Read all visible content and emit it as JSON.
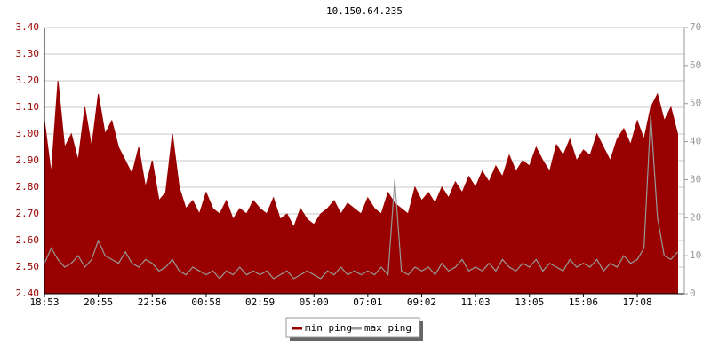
{
  "chart_data": {
    "type": "area_line",
    "title": "10.150.64.235",
    "categories": [
      "18:53",
      null,
      null,
      null,
      null,
      null,
      null,
      null,
      "20:55",
      null,
      null,
      null,
      null,
      null,
      null,
      null,
      "22:56",
      null,
      null,
      null,
      null,
      null,
      null,
      null,
      "00:58",
      null,
      null,
      null,
      null,
      null,
      null,
      null,
      "02:59",
      null,
      null,
      null,
      null,
      null,
      null,
      null,
      "05:00",
      null,
      null,
      null,
      null,
      null,
      null,
      null,
      "07:01",
      null,
      null,
      null,
      null,
      null,
      null,
      null,
      "09:02",
      null,
      null,
      null,
      null,
      null,
      null,
      null,
      "11:03",
      null,
      null,
      null,
      null,
      null,
      null,
      null,
      "13:05",
      null,
      null,
      null,
      null,
      null,
      null,
      null,
      "15:06",
      null,
      null,
      null,
      null,
      null,
      null,
      null,
      "17:08",
      null,
      null,
      null,
      null,
      null,
      null
    ],
    "series": [
      {
        "name": "min ping",
        "color": "#990000",
        "values": [
          3.05,
          2.85,
          3.2,
          2.95,
          3.0,
          2.9,
          3.1,
          2.95,
          3.15,
          3.0,
          3.05,
          2.95,
          2.9,
          2.85,
          2.95,
          2.8,
          2.9,
          2.75,
          2.78,
          3.0,
          2.8,
          2.72,
          2.75,
          2.7,
          2.78,
          2.72,
          2.7,
          2.75,
          2.68,
          2.72,
          2.7,
          2.75,
          2.72,
          2.7,
          2.76,
          2.68,
          2.7,
          2.65,
          2.72,
          2.68,
          2.66,
          2.7,
          2.72,
          2.75,
          2.7,
          2.74,
          2.72,
          2.7,
          2.76,
          2.72,
          2.7,
          2.78,
          2.74,
          2.72,
          2.7,
          2.8,
          2.75,
          2.78,
          2.74,
          2.8,
          2.76,
          2.82,
          2.78,
          2.84,
          2.8,
          2.86,
          2.82,
          2.88,
          2.84,
          2.92,
          2.86,
          2.9,
          2.88,
          2.95,
          2.9,
          2.86,
          2.96,
          2.92,
          2.98,
          2.9,
          2.94,
          2.92,
          3.0,
          2.95,
          2.9,
          2.98,
          3.02,
          2.96,
          3.05,
          2.98,
          3.1,
          3.15,
          3.05,
          3.1,
          3.0
        ]
      },
      {
        "name": "max ping",
        "color": "#999999",
        "axis": "y2",
        "values": [
          8,
          12,
          9,
          7,
          8,
          10,
          7,
          9,
          14,
          10,
          9,
          8,
          11,
          8,
          7,
          9,
          8,
          6,
          7,
          9,
          6,
          5,
          7,
          6,
          5,
          6,
          4,
          6,
          5,
          7,
          5,
          6,
          5,
          6,
          4,
          5,
          6,
          4,
          5,
          6,
          5,
          4,
          6,
          5,
          7,
          5,
          6,
          5,
          6,
          5,
          7,
          5,
          30,
          6,
          5,
          7,
          6,
          7,
          5,
          8,
          6,
          7,
          9,
          6,
          7,
          6,
          8,
          6,
          9,
          7,
          6,
          8,
          7,
          9,
          6,
          8,
          7,
          6,
          9,
          7,
          8,
          7,
          9,
          6,
          8,
          7,
          10,
          8,
          9,
          12,
          47,
          20,
          10,
          9,
          11
        ]
      }
    ],
    "ylim": [
      2.4,
      3.4
    ],
    "yticks": [
      {
        "value": 2.4,
        "label": "2.40"
      },
      {
        "value": 2.5,
        "label": "2.50"
      },
      {
        "value": 2.6,
        "label": "2.60"
      },
      {
        "value": 2.7,
        "label": "2.70"
      },
      {
        "value": 2.8,
        "label": "2.80"
      },
      {
        "value": 2.9,
        "label": "2.90"
      },
      {
        "value": 3.0,
        "label": "3.00"
      },
      {
        "value": 3.1,
        "label": "3.10"
      },
      {
        "value": 3.2,
        "label": "3.20"
      },
      {
        "value": 3.3,
        "label": "3.30"
      },
      {
        "value": 3.4,
        "label": "3.40"
      }
    ],
    "y2lim": [
      0,
      70
    ],
    "y2ticks": [
      0,
      10,
      20,
      30,
      40,
      50,
      60,
      70
    ],
    "grid": true
  }
}
